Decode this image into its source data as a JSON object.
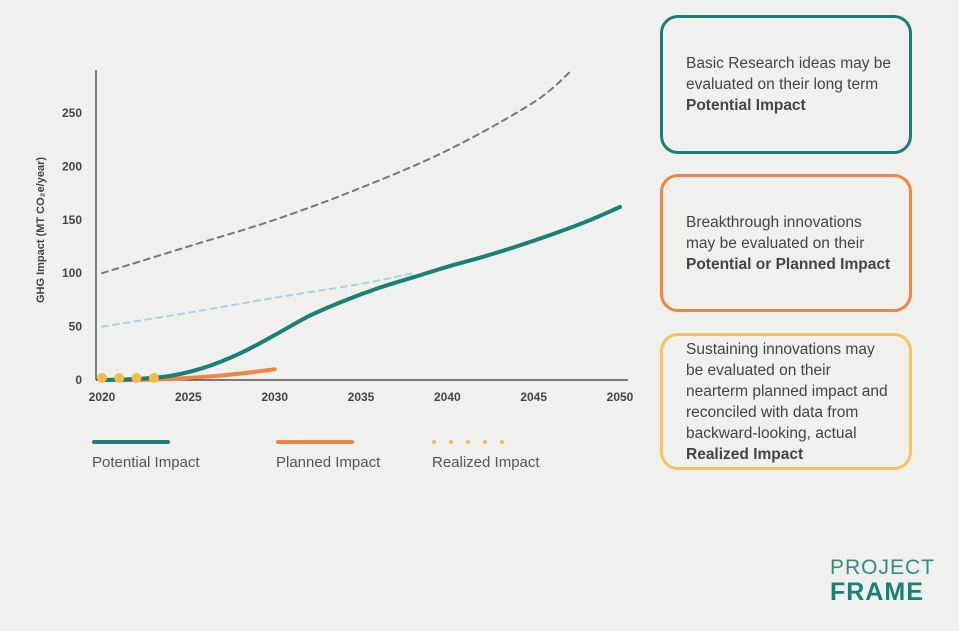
{
  "chart_data": {
    "type": "line",
    "ylabel": "GHG Impact (MT CO₂e/year)",
    "xlabel": "",
    "xlim": [
      2020,
      2050
    ],
    "ylim": [
      0,
      285
    ],
    "x_ticks": [
      2020,
      2025,
      2030,
      2035,
      2040,
      2045,
      2050
    ],
    "y_ticks": [
      0,
      50,
      100,
      150,
      200,
      250
    ],
    "grid": false,
    "legend_placement": "bottom",
    "series": [
      {
        "name": "Potential Impact",
        "style": "solid",
        "color": "#1b7f77",
        "points": [
          [
            2020,
            0
          ],
          [
            2022,
            1
          ],
          [
            2024,
            4
          ],
          [
            2026,
            12
          ],
          [
            2028,
            25
          ],
          [
            2030,
            42
          ],
          [
            2032,
            60
          ],
          [
            2034,
            74
          ],
          [
            2036,
            86
          ],
          [
            2038,
            96
          ],
          [
            2040,
            106
          ],
          [
            2042,
            115
          ],
          [
            2044,
            125
          ],
          [
            2046,
            136
          ],
          [
            2048,
            148
          ],
          [
            2050,
            162
          ]
        ]
      },
      {
        "name": "Planned Impact",
        "style": "solid",
        "color": "#ee8540",
        "points": [
          [
            2020,
            0
          ],
          [
            2022,
            0
          ],
          [
            2024,
            1
          ],
          [
            2026,
            3
          ],
          [
            2028,
            6
          ],
          [
            2030,
            10
          ]
        ]
      },
      {
        "name": "Realized Impact",
        "style": "dots",
        "color": "#f2bd4a",
        "points": [
          [
            2020,
            2
          ],
          [
            2021,
            2
          ],
          [
            2022,
            2
          ],
          [
            2023,
            2
          ]
        ]
      },
      {
        "name": "",
        "style": "dashed",
        "color": "#777777",
        "points": [
          [
            2020,
            100
          ],
          [
            2025,
            125
          ],
          [
            2030,
            150
          ],
          [
            2035,
            180
          ],
          [
            2040,
            215
          ],
          [
            2045,
            260
          ],
          [
            2047.2,
            290
          ]
        ]
      },
      {
        "name": "",
        "style": "dashed",
        "color": "#a9d7d6",
        "points": [
          [
            2020,
            50
          ],
          [
            2025,
            63
          ],
          [
            2030,
            77
          ],
          [
            2035,
            90
          ],
          [
            2038,
            100
          ]
        ]
      }
    ]
  },
  "legend": {
    "potential": "Potential Impact",
    "planned": "Planned Impact",
    "realized": "Realized Impact"
  },
  "cards": {
    "teal": {
      "text": "Basic Research ideas may be evaluated on their long term",
      "bold": "Potential Impact",
      "color": "#1b7f77"
    },
    "orange": {
      "text": "Breakthrough innovations may be evaluated on their",
      "bold": "Potential or Planned Impact",
      "color": "#ee8540"
    },
    "yellow": {
      "text": "Sustaining innovations may be evaluated on their nearterm planned impact and reconciled with data from backward-looking, actual",
      "bold": "Realized Impact",
      "color": "#f2c65a"
    }
  },
  "brand": {
    "line1": "PROJECT",
    "line2": "FRAME"
  }
}
